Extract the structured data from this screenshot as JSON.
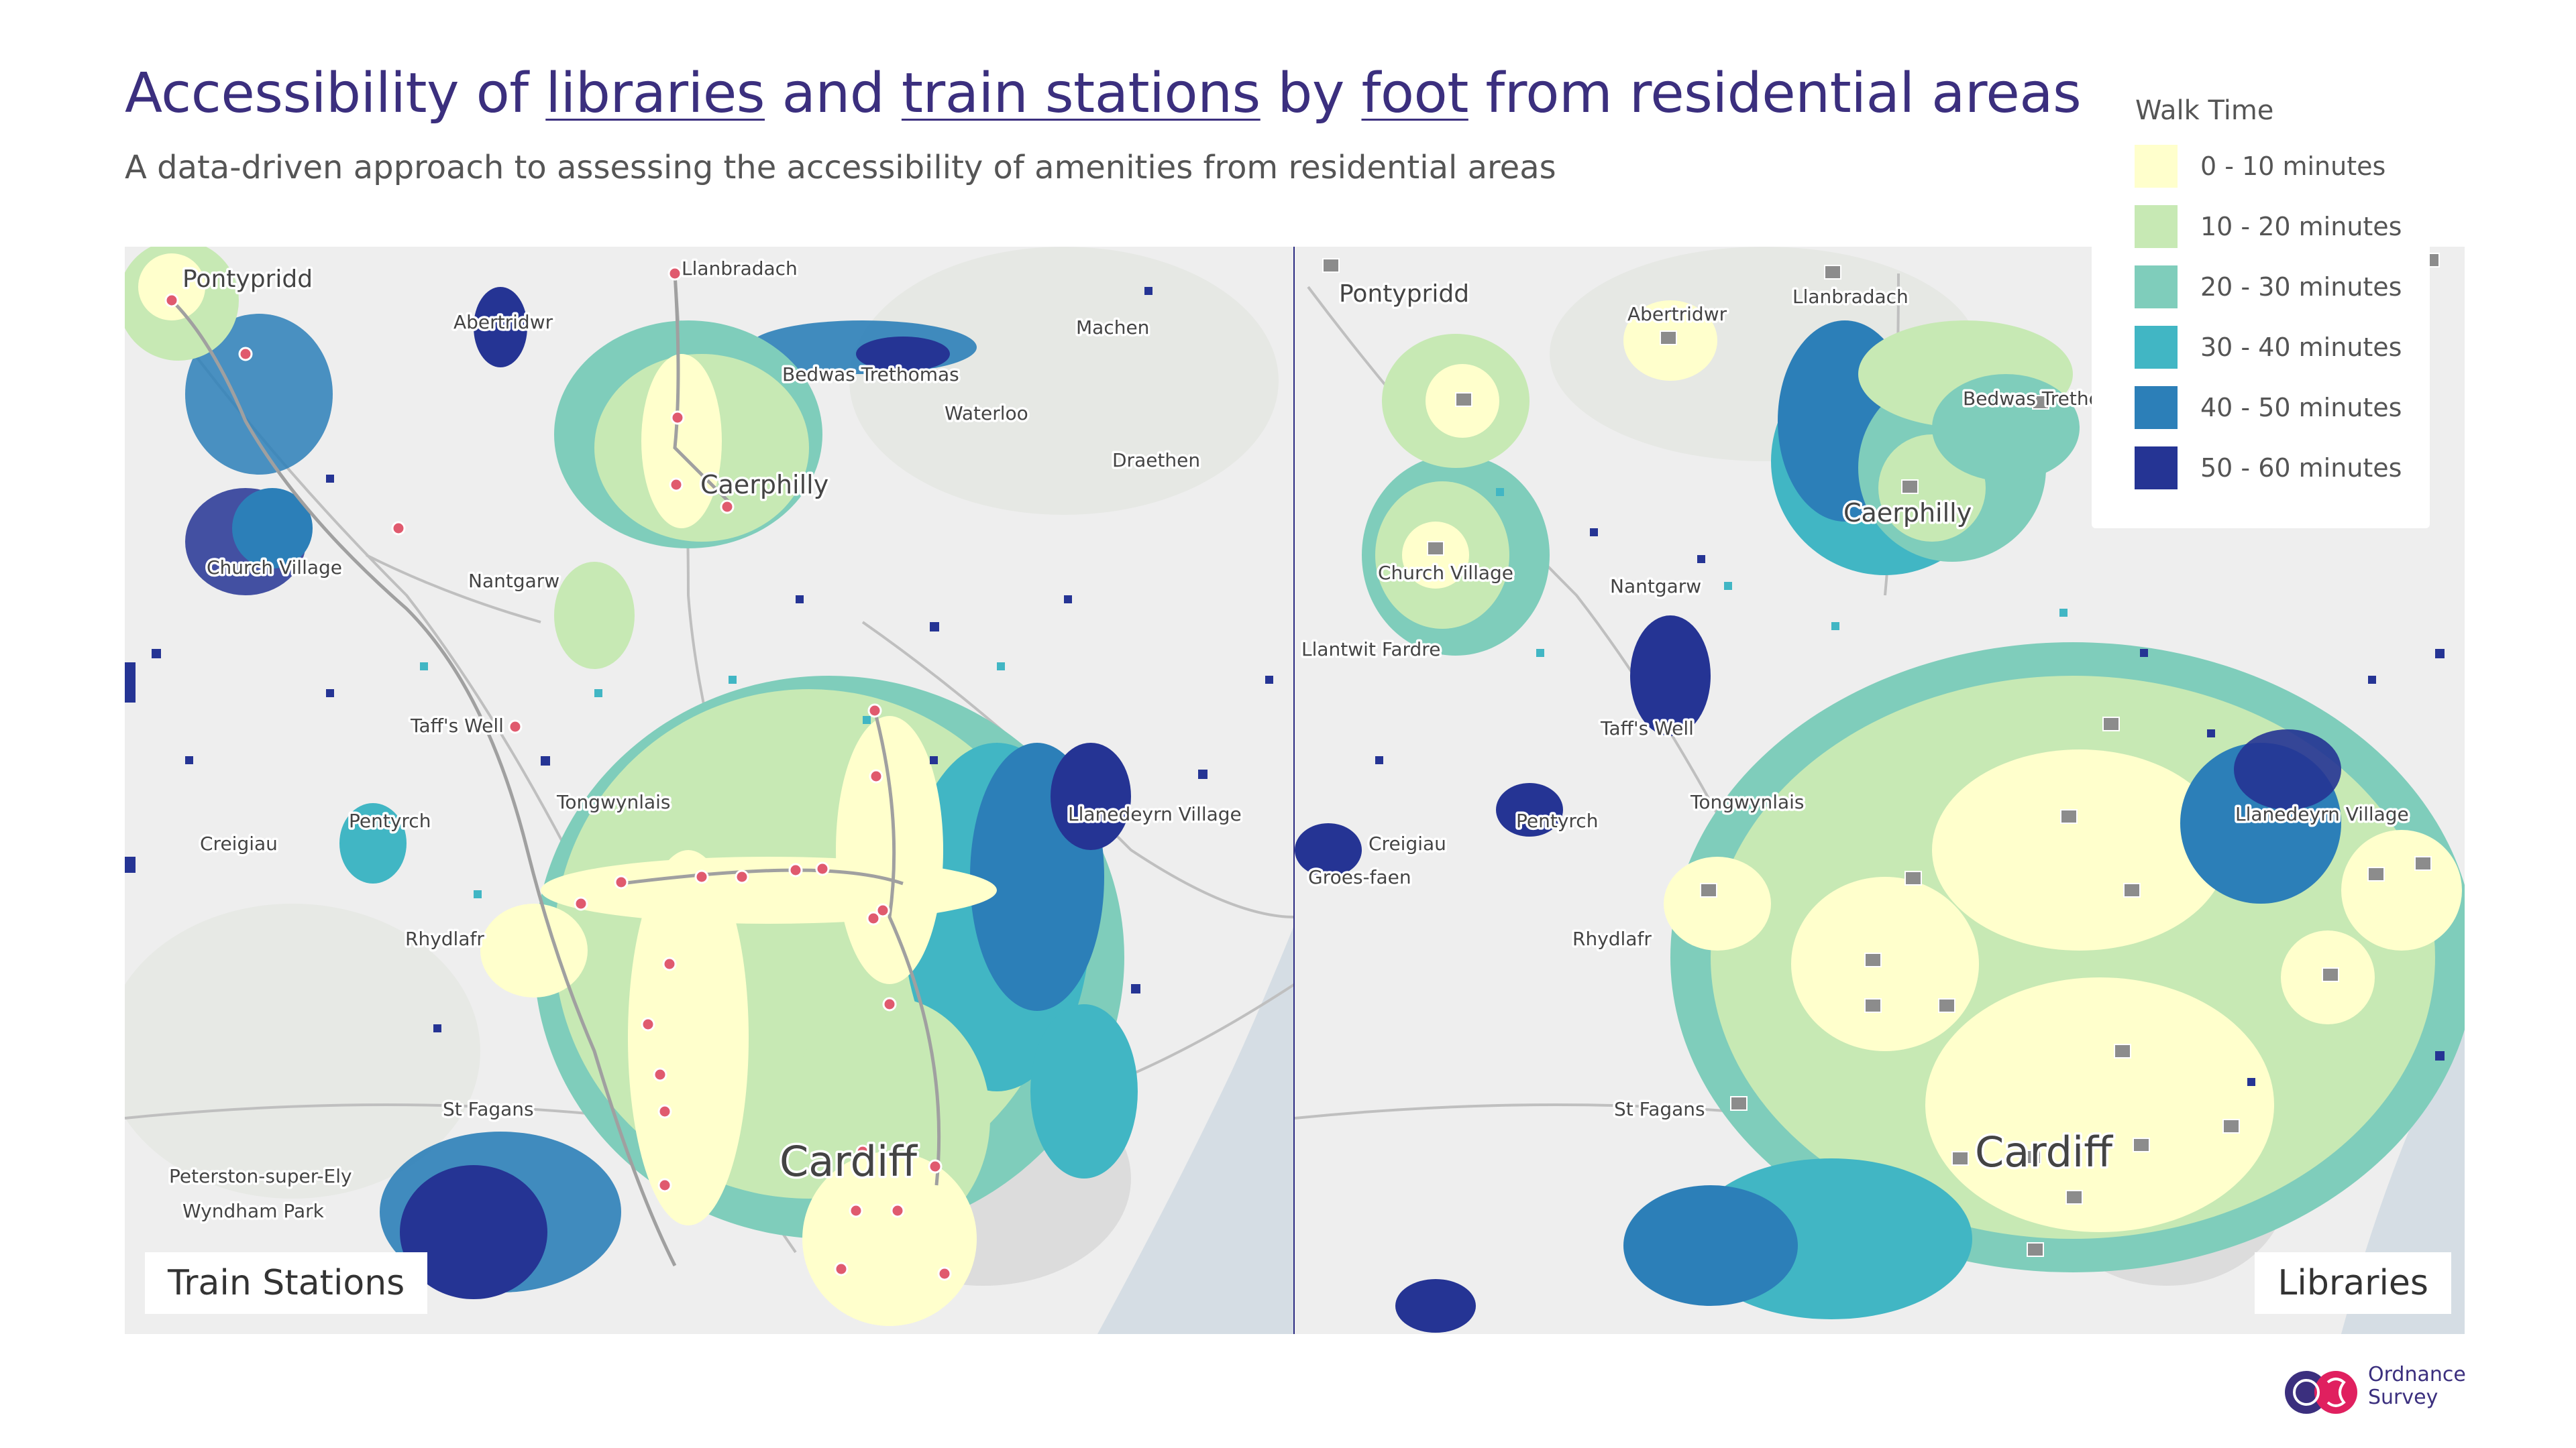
{
  "title": {
    "part1": "Accessibility of ",
    "libraries": "libraries",
    "part2": " and ",
    "train_stations": "train stations",
    "part3": " by ",
    "foot": "foot",
    "part4": " from residential areas"
  },
  "subtitle": "A data-driven approach to assessing the accessibility of amenities from residential areas",
  "legend": {
    "title": "Walk Time",
    "items": [
      {
        "label": "0 - 10 minutes",
        "color": "#ffffcc"
      },
      {
        "label": "10 - 20 minutes",
        "color": "#c7e9b4"
      },
      {
        "label": "20 - 30 minutes",
        "color": "#7fcdbb"
      },
      {
        "label": "30 - 40 minutes",
        "color": "#41b6c4"
      },
      {
        "label": "40 - 50 minutes",
        "color": "#2c7fb8"
      },
      {
        "label": "50 - 60 minutes",
        "color": "#253494"
      }
    ]
  },
  "panels": {
    "left": {
      "label": "Train Stations",
      "places": {
        "pontypridd": "Pontypridd",
        "abertridwr": "Abertridwr",
        "llanbradach": "Llanbradach",
        "bedwas": "Bedwas Trethomas",
        "machen": "Machen",
        "waterloo": "Waterloo",
        "draethen": "Draethen",
        "caerphilly": "Caerphilly",
        "church_village": "Church Village",
        "nantgarw": "Nantgarw",
        "taffs_well": "Taff's Well",
        "tongwynlais": "Tongwynlais",
        "llanedeyrn": "Llanedeyrn Village",
        "pentyrch": "Pentyrch",
        "creigiau": "Creigiau",
        "rhydlafr": "Rhydlafr",
        "st_fagans": "St Fagans",
        "peterston": "Peterston-super-Ely",
        "wyndham": "Wyndham Park",
        "cardiff": "Cardiff"
      }
    },
    "right": {
      "label": "Libraries",
      "places": {
        "pontypridd": "Pontypridd",
        "abertridwr": "Abertridwr",
        "llanbradach": "Llanbradach",
        "bedwas": "Bedwas Trethomas",
        "caerphilly": "Caerphilly",
        "church_village": "Church Village",
        "nantgarw": "Nantgarw",
        "llantwit": "Llantwit Fardre",
        "taffs_well": "Taff's Well",
        "tongwynlais": "Tongwynlais",
        "llanedeyrn": "Llanedeyrn Village",
        "pentyrch": "Pentyrch",
        "creigiau": "Creigiau",
        "groes_faen": "Groes-faen",
        "rhydlafr": "Rhydlafr",
        "st_fagans": "St Fagans",
        "cardiff": "Cardiff"
      }
    }
  },
  "logo": {
    "line1": "Ordnance",
    "line2": "Survey"
  }
}
